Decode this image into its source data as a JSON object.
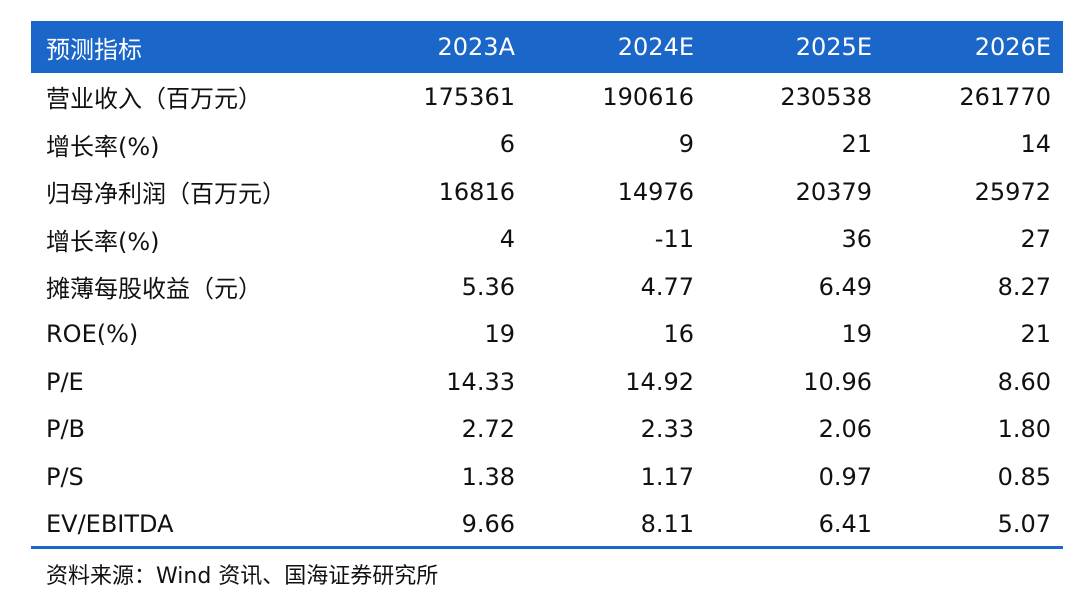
{
  "table": {
    "header": [
      "预测指标",
      "2023A",
      "2024E",
      "2025E",
      "2026E"
    ],
    "rows": [
      [
        "营业收入（百万元）",
        "175361",
        "190616",
        "230538",
        "261770"
      ],
      [
        "增长率(%)",
        "6",
        "9",
        "21",
        "14"
      ],
      [
        "归母净利润（百万元）",
        "16816",
        "14976",
        "20379",
        "25972"
      ],
      [
        "增长率(%)",
        "4",
        "-11",
        "36",
        "27"
      ],
      [
        "摊薄每股收益（元）",
        "5.36",
        "4.77",
        "6.49",
        "8.27"
      ],
      [
        "ROE(%)",
        "19",
        "16",
        "19",
        "21"
      ],
      [
        "P/E",
        "14.33",
        "14.92",
        "10.96",
        "8.60"
      ],
      [
        "P/B",
        "2.72",
        "2.33",
        "2.06",
        "1.80"
      ],
      [
        "P/S",
        "1.38",
        "1.17",
        "0.97",
        "0.85"
      ],
      [
        "EV/EBITDA",
        "9.66",
        "8.11",
        "6.41",
        "5.07"
      ]
    ]
  },
  "source": "资料来源：Wind 资讯、国海证券研究所",
  "colors": {
    "header_bg": "#1a66c9",
    "header_text": "#ffffff",
    "rule": "#1a66c9"
  }
}
